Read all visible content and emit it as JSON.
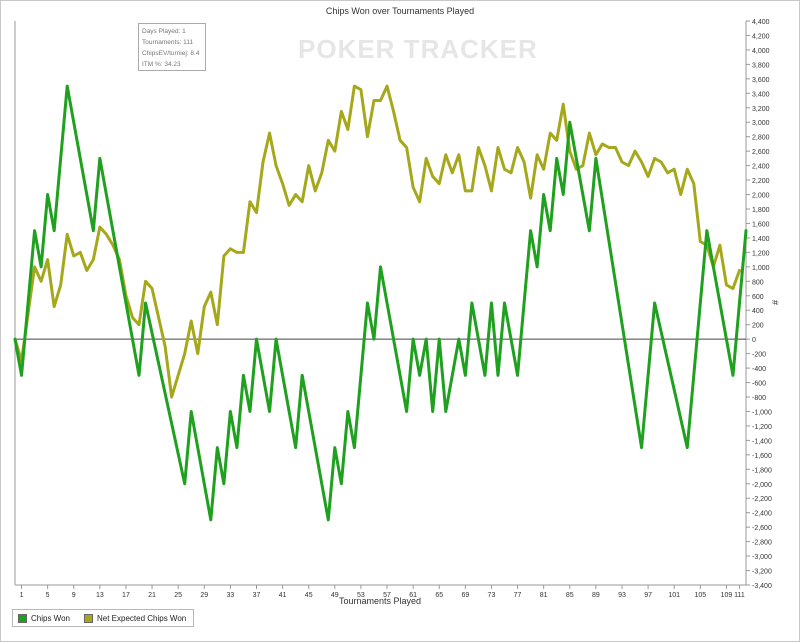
{
  "watermark": "POKER TRACKER",
  "tooltip": {
    "lines": [
      "Days Played: 1",
      "Tournaments: 111",
      "ChipsEV/turniej: 8.4",
      "ITM %: 34.23"
    ]
  },
  "chart_data": {
    "type": "line",
    "title": "Chips Won over Tournaments Played",
    "xlabel": "Tournaments Played",
    "ylabel": "#",
    "xlim": [
      0,
      112
    ],
    "ylim": [
      -3400,
      4400
    ],
    "x_ticks": [
      1,
      5,
      9,
      13,
      17,
      21,
      25,
      29,
      33,
      37,
      41,
      45,
      49,
      53,
      57,
      61,
      65,
      69,
      73,
      77,
      81,
      85,
      89,
      93,
      97,
      101,
      105,
      109,
      111
    ],
    "y_ticks": [
      -3400,
      -3200,
      -3000,
      -2800,
      -2600,
      -2400,
      -2200,
      -2000,
      -1800,
      -1600,
      -1400,
      -1200,
      -1000,
      -800,
      -600,
      -400,
      -200,
      0,
      200,
      400,
      600,
      800,
      1000,
      1200,
      1400,
      1600,
      1800,
      2000,
      2200,
      2400,
      2600,
      2800,
      3000,
      3200,
      3400,
      3600,
      3800,
      4000,
      4200,
      4400
    ],
    "grid": false,
    "legend_position": "bottom-left",
    "series": [
      {
        "name": "Chips Won",
        "color": "#1fa01f",
        "points": [
          [
            0,
            0
          ],
          [
            1,
            -500
          ],
          [
            2,
            500
          ],
          [
            3,
            1500
          ],
          [
            4,
            1000
          ],
          [
            5,
            2000
          ],
          [
            6,
            1500
          ],
          [
            8,
            3500
          ],
          [
            12,
            1500
          ],
          [
            13,
            2500
          ],
          [
            19,
            -500
          ],
          [
            20,
            500
          ],
          [
            26,
            -2000
          ],
          [
            27,
            -1000
          ],
          [
            30,
            -2500
          ],
          [
            31,
            -1500
          ],
          [
            32,
            -2000
          ],
          [
            33,
            -1000
          ],
          [
            34,
            -1500
          ],
          [
            35,
            -500
          ],
          [
            36,
            -1000
          ],
          [
            37,
            0
          ],
          [
            39,
            -1000
          ],
          [
            40,
            0
          ],
          [
            43,
            -1500
          ],
          [
            44,
            -500
          ],
          [
            48,
            -2500
          ],
          [
            49,
            -1500
          ],
          [
            50,
            -2000
          ],
          [
            51,
            -1000
          ],
          [
            52,
            -1500
          ],
          [
            54,
            500
          ],
          [
            55,
            0
          ],
          [
            56,
            1000
          ],
          [
            60,
            -1000
          ],
          [
            61,
            0
          ],
          [
            62,
            -500
          ],
          [
            63,
            0
          ],
          [
            64,
            -1000
          ],
          [
            65,
            0
          ],
          [
            66,
            -1000
          ],
          [
            67,
            -500
          ],
          [
            68,
            0
          ],
          [
            69,
            -500
          ],
          [
            70,
            500
          ],
          [
            72,
            -500
          ],
          [
            73,
            500
          ],
          [
            74,
            -500
          ],
          [
            75,
            500
          ],
          [
            77,
            -500
          ],
          [
            79,
            1500
          ],
          [
            80,
            1000
          ],
          [
            81,
            2000
          ],
          [
            82,
            1500
          ],
          [
            83,
            2500
          ],
          [
            84,
            2000
          ],
          [
            85,
            3000
          ],
          [
            88,
            1500
          ],
          [
            89,
            2500
          ],
          [
            96,
            -1500
          ],
          [
            98,
            500
          ],
          [
            103,
            -1500
          ],
          [
            106,
            1500
          ],
          [
            110,
            -500
          ],
          [
            112,
            1500
          ]
        ]
      },
      {
        "name": "Net Expected Chips Won",
        "color": "#a6a81c",
        "points": [
          [
            0,
            0
          ],
          [
            1,
            -300
          ],
          [
            3,
            1000
          ],
          [
            4,
            800
          ],
          [
            5,
            1100
          ],
          [
            6,
            450
          ],
          [
            7,
            750
          ],
          [
            8,
            1450
          ],
          [
            9,
            1150
          ],
          [
            10,
            1200
          ],
          [
            11,
            950
          ],
          [
            12,
            1100
          ],
          [
            13,
            1550
          ],
          [
            14,
            1450
          ],
          [
            15,
            1300
          ],
          [
            16,
            1100
          ],
          [
            17,
            600
          ],
          [
            18,
            300
          ],
          [
            19,
            200
          ],
          [
            20,
            800
          ],
          [
            21,
            700
          ],
          [
            23,
            -100
          ],
          [
            24,
            -800
          ],
          [
            26,
            -200
          ],
          [
            27,
            250
          ],
          [
            28,
            -200
          ],
          [
            29,
            450
          ],
          [
            30,
            650
          ],
          [
            31,
            200
          ],
          [
            32,
            1150
          ],
          [
            33,
            1250
          ],
          [
            34,
            1200
          ],
          [
            35,
            1200
          ],
          [
            36,
            1900
          ],
          [
            37,
            1750
          ],
          [
            38,
            2450
          ],
          [
            39,
            2850
          ],
          [
            40,
            2400
          ],
          [
            41,
            2150
          ],
          [
            42,
            1850
          ],
          [
            43,
            2000
          ],
          [
            44,
            1900
          ],
          [
            45,
            2400
          ],
          [
            46,
            2050
          ],
          [
            47,
            2300
          ],
          [
            48,
            2750
          ],
          [
            49,
            2600
          ],
          [
            50,
            3150
          ],
          [
            51,
            2900
          ],
          [
            52,
            3500
          ],
          [
            53,
            3450
          ],
          [
            54,
            2800
          ],
          [
            55,
            3300
          ],
          [
            56,
            3300
          ],
          [
            57,
            3500
          ],
          [
            58,
            3150
          ],
          [
            59,
            2750
          ],
          [
            60,
            2650
          ],
          [
            61,
            2100
          ],
          [
            62,
            1900
          ],
          [
            63,
            2500
          ],
          [
            64,
            2250
          ],
          [
            65,
            2150
          ],
          [
            66,
            2550
          ],
          [
            67,
            2300
          ],
          [
            68,
            2550
          ],
          [
            69,
            2050
          ],
          [
            70,
            2050
          ],
          [
            71,
            2650
          ],
          [
            72,
            2400
          ],
          [
            73,
            2050
          ],
          [
            74,
            2650
          ],
          [
            75,
            2350
          ],
          [
            76,
            2300
          ],
          [
            77,
            2650
          ],
          [
            78,
            2450
          ],
          [
            79,
            1950
          ],
          [
            80,
            2550
          ],
          [
            81,
            2350
          ],
          [
            82,
            2850
          ],
          [
            83,
            2750
          ],
          [
            84,
            3250
          ],
          [
            85,
            2600
          ],
          [
            86,
            2350
          ],
          [
            87,
            2400
          ],
          [
            88,
            2850
          ],
          [
            89,
            2550
          ],
          [
            90,
            2700
          ],
          [
            91,
            2650
          ],
          [
            92,
            2650
          ],
          [
            93,
            2450
          ],
          [
            94,
            2400
          ],
          [
            95,
            2600
          ],
          [
            96,
            2450
          ],
          [
            97,
            2250
          ],
          [
            98,
            2500
          ],
          [
            99,
            2450
          ],
          [
            100,
            2300
          ],
          [
            101,
            2350
          ],
          [
            102,
            2000
          ],
          [
            103,
            2350
          ],
          [
            104,
            2150
          ],
          [
            105,
            1350
          ],
          [
            106,
            1300
          ],
          [
            107,
            1000
          ],
          [
            108,
            1300
          ],
          [
            109,
            750
          ],
          [
            110,
            700
          ],
          [
            111,
            950
          ]
        ]
      }
    ]
  }
}
